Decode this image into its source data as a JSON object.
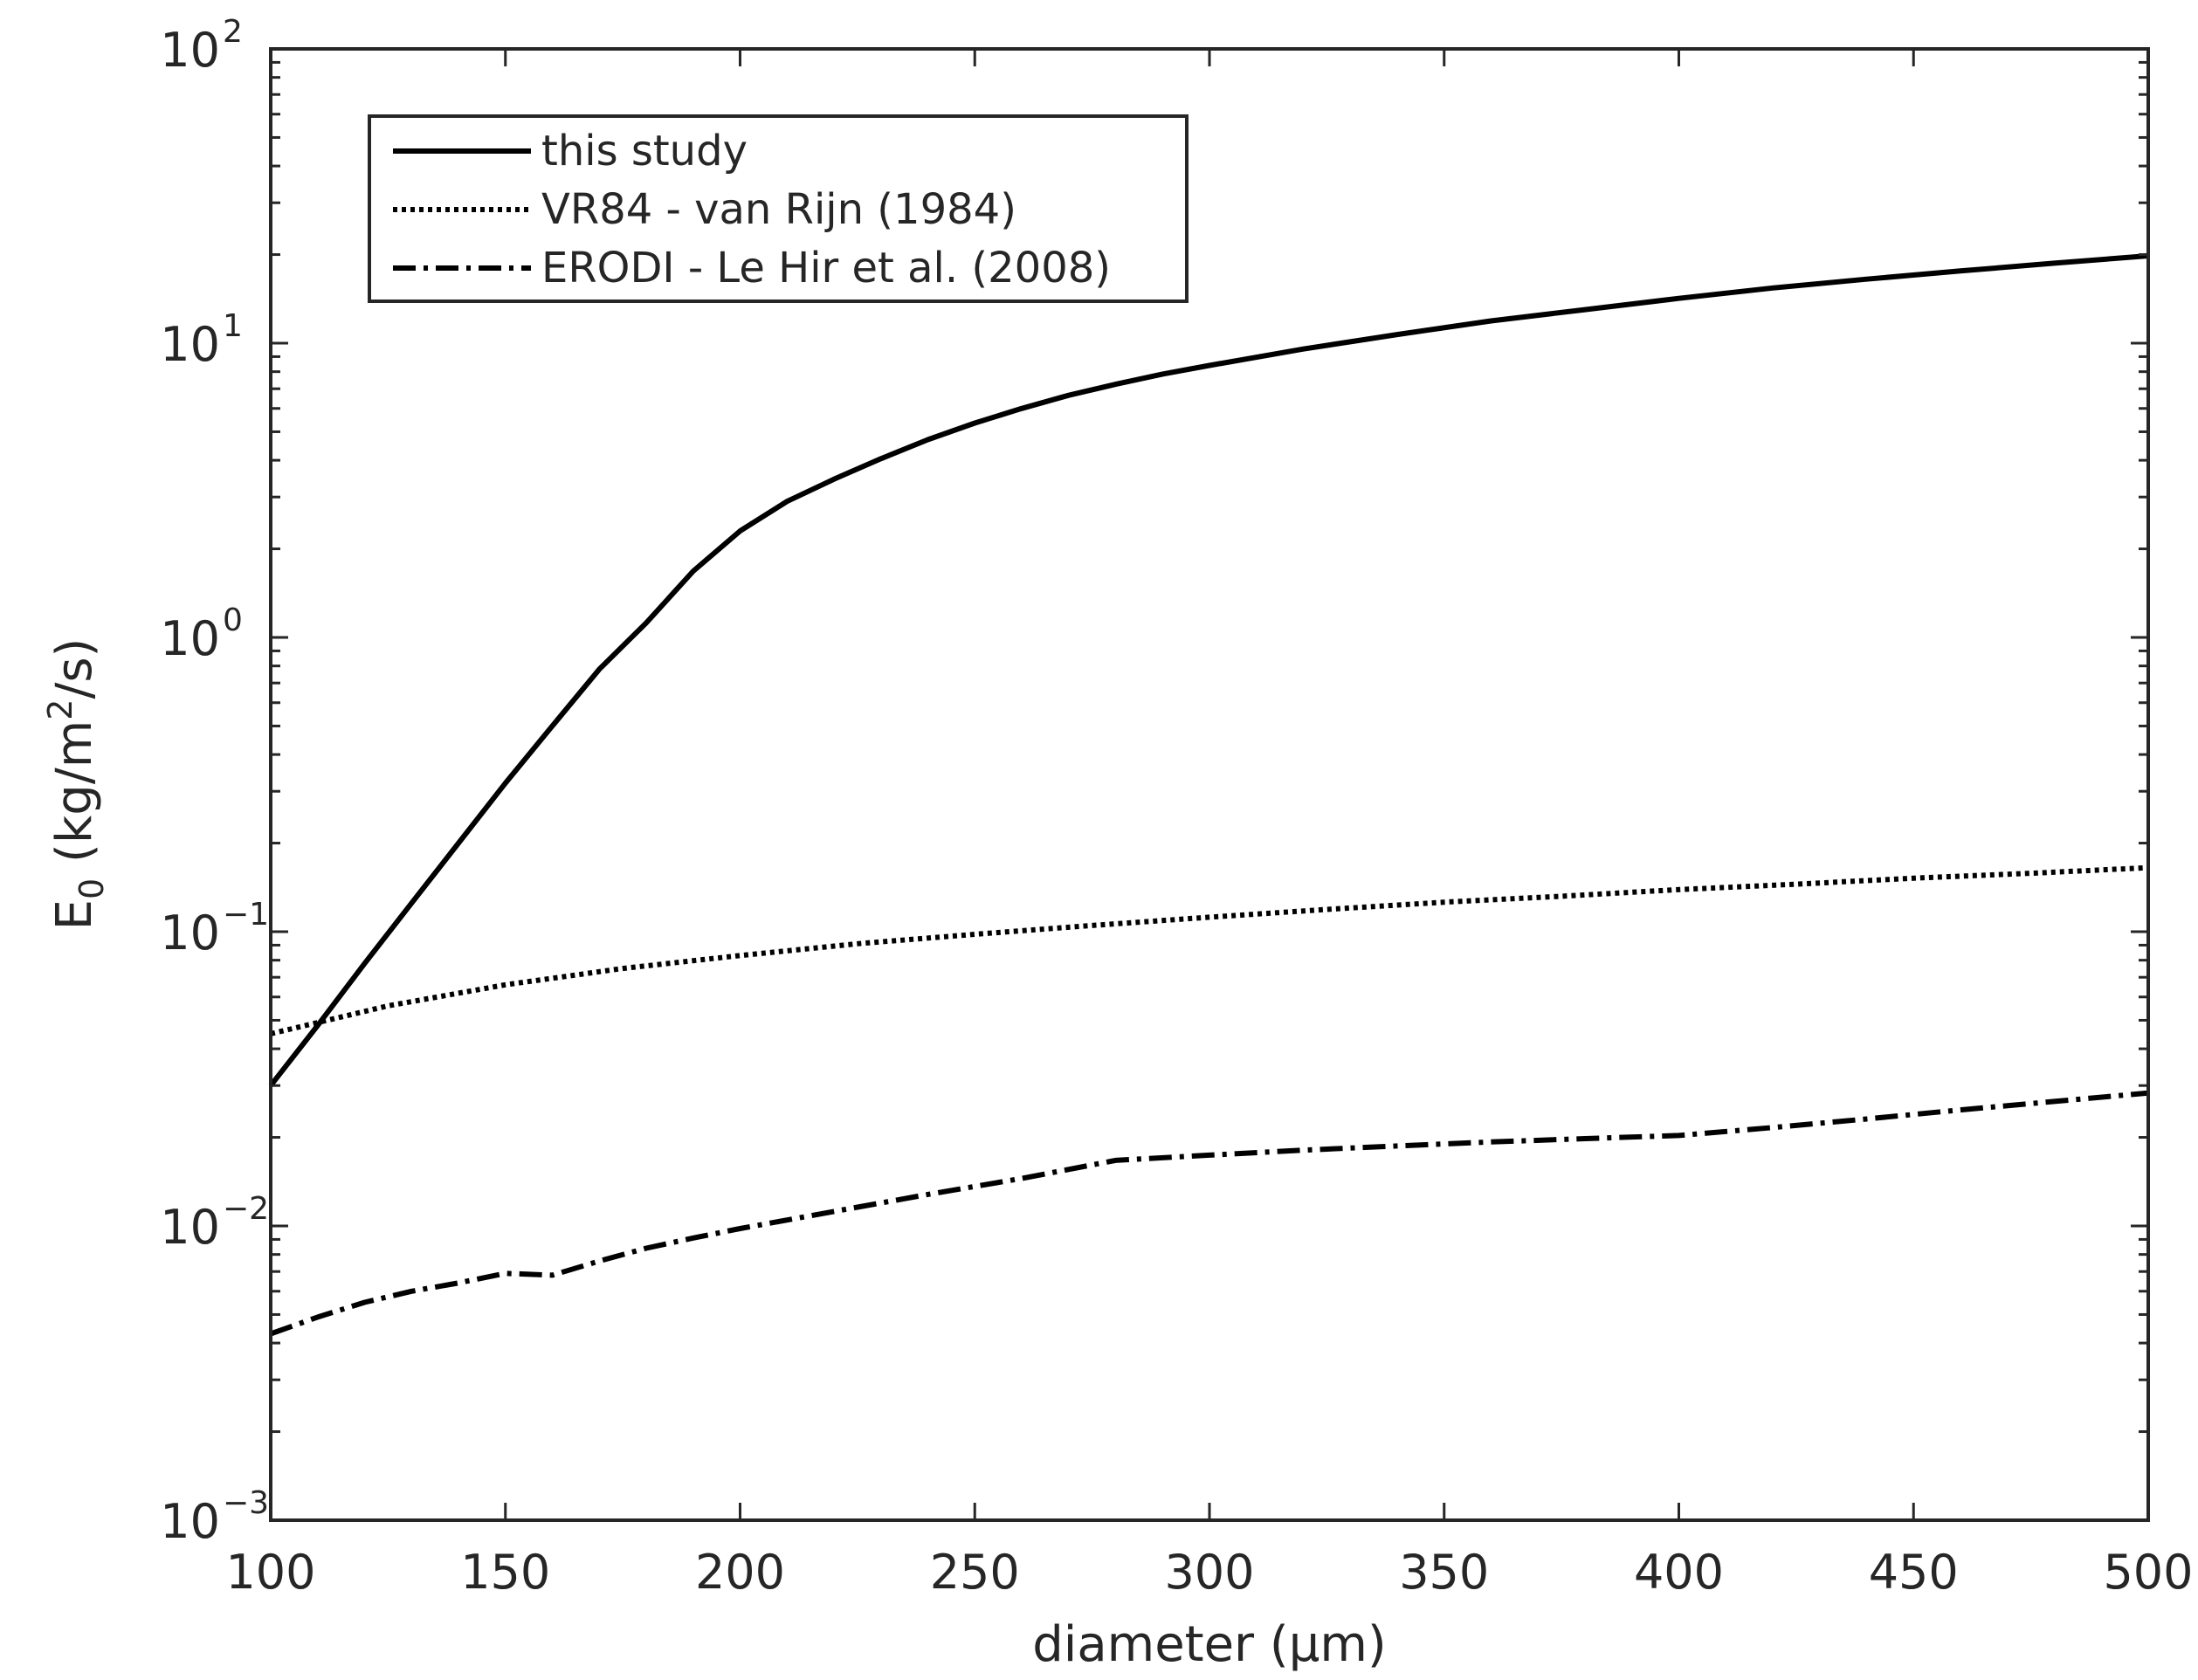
{
  "chart_data": {
    "type": "line",
    "xlabel": "diameter (μm)",
    "ylabel": {
      "base": "E",
      "sub": "0",
      "pre": " (kg/m",
      "sup": "2",
      "post": "/s)"
    },
    "xlim": [
      100,
      500
    ],
    "ylim": [
      0.001,
      100
    ],
    "yscale": "log",
    "grid": false,
    "legend_position": "top-left",
    "x_ticks": [
      100,
      150,
      200,
      250,
      300,
      350,
      400,
      450,
      500
    ],
    "x_tick_labels": [
      "100",
      "150",
      "200",
      "250",
      "300",
      "350",
      "400",
      "450",
      "500"
    ],
    "y_ticks": [
      {
        "value": 0.001,
        "base": "10",
        "exp": "−3"
      },
      {
        "value": 0.01,
        "base": "10",
        "exp": "−2"
      },
      {
        "value": 0.1,
        "base": "10",
        "exp": "−1"
      },
      {
        "value": 1,
        "base": "10",
        "exp": "0"
      },
      {
        "value": 10,
        "base": "10",
        "exp": "1"
      },
      {
        "value": 100,
        "base": "10",
        "exp": "2"
      }
    ],
    "series": [
      {
        "name": "this study",
        "style": "solid",
        "x": [
          100,
          110,
          120,
          130,
          140,
          150,
          160,
          170,
          180,
          190,
          200,
          210,
          220,
          230,
          240,
          250,
          260,
          270,
          280,
          290,
          300,
          320,
          340,
          360,
          380,
          400,
          420,
          440,
          460,
          480,
          500
        ],
        "y": [
          0.03,
          0.048,
          0.078,
          0.125,
          0.2,
          0.32,
          0.5,
          0.78,
          1.12,
          1.68,
          2.3,
          2.9,
          3.45,
          4.05,
          4.7,
          5.35,
          6.0,
          6.65,
          7.25,
          7.85,
          8.4,
          9.55,
          10.7,
          11.9,
          13.0,
          14.2,
          15.4,
          16.5,
          17.6,
          18.7,
          19.8
        ]
      },
      {
        "name": "VR84 - van Rijn (1984)",
        "style": "dotted",
        "x": [
          100,
          125,
          150,
          175,
          200,
          225,
          250,
          275,
          300,
          325,
          350,
          375,
          400,
          425,
          450,
          475,
          500
        ],
        "y": [
          0.045,
          0.056,
          0.066,
          0.075,
          0.083,
          0.091,
          0.098,
          0.105,
          0.112,
          0.119,
          0.126,
          0.132,
          0.139,
          0.145,
          0.152,
          0.158,
          0.165
        ]
      },
      {
        "name": "ERODI - Le Hir et al. (2008)",
        "style": "dashdot",
        "x": [
          100,
          110,
          120,
          130,
          140,
          150,
          160,
          170,
          180,
          190,
          200,
          220,
          240,
          260,
          280,
          300,
          320,
          340,
          360,
          380,
          400,
          420,
          440,
          460,
          480,
          500
        ],
        "y": [
          0.0043,
          0.0049,
          0.0055,
          0.006,
          0.0064,
          0.0069,
          0.0068,
          0.0076,
          0.0084,
          0.0091,
          0.0098,
          0.0112,
          0.0128,
          0.0145,
          0.0167,
          0.0174,
          0.0181,
          0.0187,
          0.0193,
          0.0198,
          0.0203,
          0.0216,
          0.0231,
          0.0248,
          0.0265,
          0.0283
        ]
      }
    ]
  }
}
